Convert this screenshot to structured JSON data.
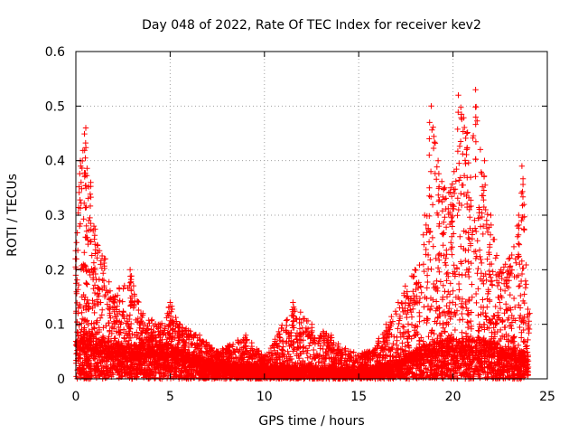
{
  "chart_data": {
    "type": "scatter",
    "title": "Day 048 of 2022, Rate Of TEC Index for receiver kev2",
    "xlabel": "GPS time / hours",
    "ylabel": "ROTI / TECUs",
    "xlim": [
      0,
      25
    ],
    "ylim": [
      0,
      0.6
    ],
    "x_ticks": [
      "0",
      "5",
      "10",
      "15",
      "20",
      "25"
    ],
    "y_ticks": [
      "0",
      "0.1",
      "0.2",
      "0.3",
      "0.4",
      "0.5",
      "0.6"
    ],
    "grid": true,
    "marker": "+",
    "marker_color": "#ff0000",
    "series": [
      {
        "name": "",
        "envelope": [
          [
            0.0,
            0.25
          ],
          [
            0.2,
            0.4
          ],
          [
            0.5,
            0.46
          ],
          [
            0.8,
            0.36
          ],
          [
            1.0,
            0.28
          ],
          [
            1.5,
            0.22
          ],
          [
            2.0,
            0.15
          ],
          [
            2.9,
            0.2
          ],
          [
            3.5,
            0.12
          ],
          [
            4.5,
            0.1
          ],
          [
            5.0,
            0.14
          ],
          [
            5.5,
            0.1
          ],
          [
            6.5,
            0.08
          ],
          [
            7.5,
            0.05
          ],
          [
            9.0,
            0.08
          ],
          [
            10.0,
            0.04
          ],
          [
            11.5,
            0.14
          ],
          [
            12.5,
            0.1
          ],
          [
            13.5,
            0.08
          ],
          [
            14.5,
            0.05
          ],
          [
            15.5,
            0.05
          ],
          [
            16.5,
            0.1
          ],
          [
            17.5,
            0.17
          ],
          [
            18.0,
            0.2
          ],
          [
            18.5,
            0.3
          ],
          [
            18.8,
            0.5
          ],
          [
            19.2,
            0.4
          ],
          [
            19.5,
            0.35
          ],
          [
            20.0,
            0.38
          ],
          [
            20.3,
            0.52
          ],
          [
            20.8,
            0.45
          ],
          [
            21.2,
            0.53
          ],
          [
            21.6,
            0.4
          ],
          [
            22.0,
            0.3
          ],
          [
            22.5,
            0.2
          ],
          [
            23.0,
            0.22
          ],
          [
            23.5,
            0.3
          ],
          [
            23.7,
            0.39
          ],
          [
            24.0,
            0.12
          ]
        ],
        "baseline": [
          [
            0.0,
            0.06
          ],
          [
            2.0,
            0.04
          ],
          [
            5.0,
            0.04
          ],
          [
            7.0,
            0.02
          ],
          [
            10.0,
            0.015
          ],
          [
            15.0,
            0.01
          ],
          [
            17.0,
            0.02
          ],
          [
            18.5,
            0.04
          ],
          [
            21.0,
            0.05
          ],
          [
            24.0,
            0.03
          ]
        ]
      }
    ]
  }
}
